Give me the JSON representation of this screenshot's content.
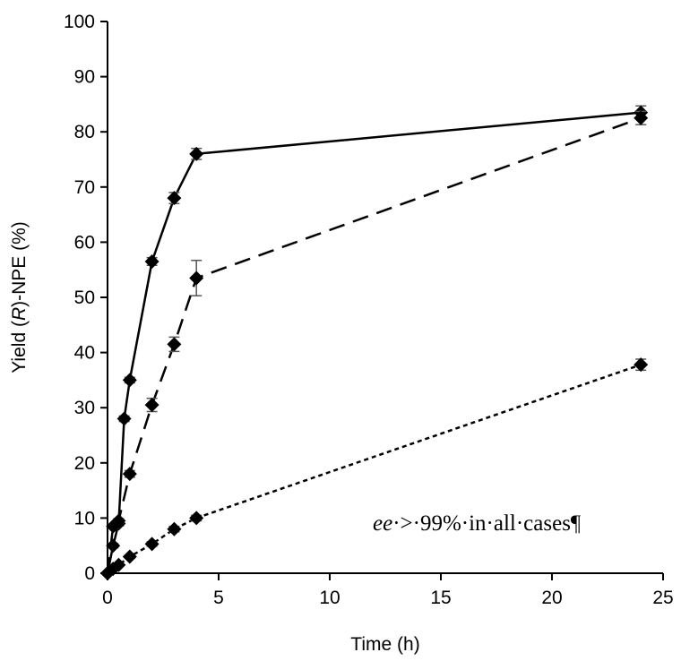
{
  "chart_data": {
    "type": "scatter",
    "title": "",
    "xlabel": "Time (h)",
    "ylabel": {
      "prefix": "Yield (",
      "italic": "R",
      "suffix": ")-NPE (%)"
    },
    "xlim": [
      0,
      25
    ],
    "ylim": [
      0,
      100
    ],
    "xticks": [
      0,
      5,
      10,
      15,
      20,
      25
    ],
    "yticks": [
      0,
      10,
      20,
      30,
      40,
      50,
      60,
      70,
      80,
      90,
      100
    ],
    "grid": false,
    "legend": "none",
    "annotation": {
      "italic": "ee",
      "text": "·>·99%·in·all·cases¶"
    },
    "series": [
      {
        "line_style": "solid",
        "color": "#000000",
        "x": [
          0,
          0.25,
          0.5,
          0.75,
          1,
          2,
          3,
          4,
          24
        ],
        "y": [
          0,
          5,
          9,
          28,
          35,
          56.5,
          68,
          76,
          83.5
        ],
        "err": [
          0,
          0.4,
          0.4,
          0.5,
          0.5,
          0.7,
          1.0,
          1.0,
          1.2
        ]
      },
      {
        "line_style": "dashed",
        "color": "#000000",
        "x": [
          0,
          0.25,
          0.5,
          1,
          2,
          3,
          4,
          24
        ],
        "y": [
          0,
          8.5,
          9.5,
          18,
          30.5,
          41.5,
          53.5,
          82.5
        ],
        "err": [
          0,
          0.4,
          0.4,
          0.6,
          1.2,
          1.3,
          3.2,
          1.2
        ]
      },
      {
        "line_style": "dotted",
        "color": "#000000",
        "x": [
          0,
          0.25,
          0.5,
          1,
          2,
          3,
          4,
          24
        ],
        "y": [
          0,
          0.8,
          1.5,
          3,
          5.3,
          8,
          10,
          37.8
        ],
        "err": [
          0,
          0.2,
          0.2,
          0.3,
          0.4,
          0.5,
          0.5,
          1.0
        ]
      }
    ]
  }
}
